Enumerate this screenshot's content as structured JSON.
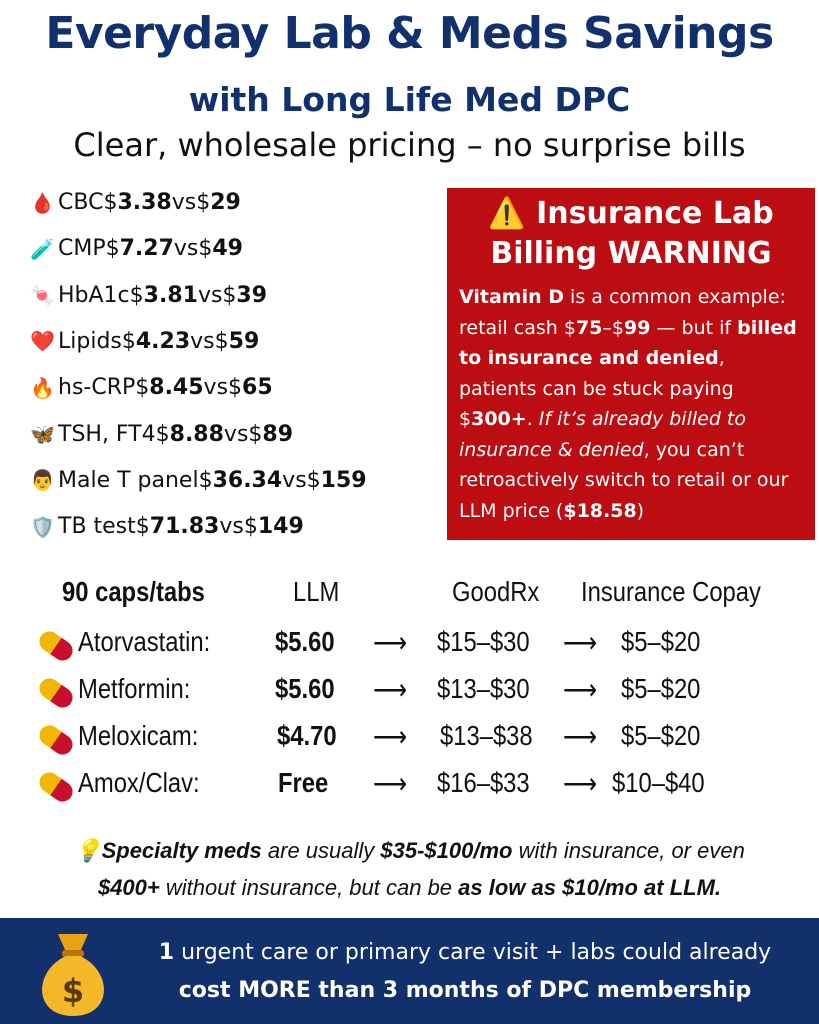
{
  "title": {
    "line1": "Everyday Lab & Meds Savings",
    "line2": "with Long Life Med DPC",
    "line3": "Clear, wholesale pricing – no surprise bills"
  },
  "labs": {
    "currency": "$",
    "vs_label": "vs",
    "items": [
      {
        "icon": "blood-drop",
        "emoji": "🩸",
        "name": "CBC",
        "llm": "3.38",
        "retail": "29"
      },
      {
        "icon": "test-tube",
        "emoji": "🧪",
        "name": "CMP",
        "llm": "7.27",
        "retail": "49"
      },
      {
        "icon": "candy",
        "emoji": "🍬",
        "name": "HbA1c",
        "llm": "3.81",
        "retail": "39"
      },
      {
        "icon": "heart",
        "emoji": "❤️",
        "name": "Lipids",
        "llm": "4.23",
        "retail": "59"
      },
      {
        "icon": "fire",
        "emoji": "🔥",
        "name": "hs-CRP",
        "llm": "8.45",
        "retail": "65"
      },
      {
        "icon": "butterfly",
        "emoji": "🦋",
        "name": "TSH, FT4",
        "llm": "8.88",
        "retail": "89"
      },
      {
        "icon": "man",
        "emoji": "👨",
        "name": "Male T panel",
        "llm": "36.34",
        "retail": "159"
      },
      {
        "icon": "shield",
        "emoji": "🛡️",
        "name": "TB test ",
        "llm": "71.83",
        "retail": "149"
      }
    ]
  },
  "warning": {
    "icon": "⚠️",
    "title1": "Insurance Lab",
    "title2": "Billing WARNING",
    "body": [
      {
        "t": "Vitamin D",
        "s": "b"
      },
      {
        "t": " is a common example: retail cash $",
        "s": ""
      },
      {
        "t": "75",
        "s": "b"
      },
      {
        "t": "–$",
        "s": ""
      },
      {
        "t": "99",
        "s": "b"
      },
      {
        "t": "  — but if ",
        "s": ""
      },
      {
        "t": "billed to insurance and denied",
        "s": "b"
      },
      {
        "t": ", patients can be stuck paying $",
        "s": ""
      },
      {
        "t": "300+",
        "s": "b"
      },
      {
        "t": ".  ",
        "s": ""
      },
      {
        "t": "If it’s already billed to insurance & denied",
        "s": "i"
      },
      {
        "t": ", you can’t retroactively switch to retail or our LLM price (",
        "s": ""
      },
      {
        "t": "$18.58",
        "s": "b"
      },
      {
        "t": ")",
        "s": ""
      }
    ]
  },
  "meds": {
    "headers": [
      "90 caps/tabs",
      "LLM",
      "GoodRx",
      "Insurance Copay"
    ],
    "arrow": "⟶",
    "rows": [
      {
        "name": "Atorvastatin:",
        "llm": "$5.60",
        "goodrx": "$15–$30",
        "copay": "$5–$20"
      },
      {
        "name": "Metformin:",
        "llm": "$5.60",
        "goodrx": "$13–$30",
        "copay": "$5–$20"
      },
      {
        "name": "Meloxicam:",
        "llm": "$4.70",
        "goodrx": "$13–$38",
        "copay": "$5–$20"
      },
      {
        "name": "Amox/Clav:",
        "llm": "Free",
        "goodrx": "$16–$33",
        "copay": "$10–$40"
      }
    ]
  },
  "note": {
    "icon": "💡",
    "segments": [
      {
        "t": "Specialty meds",
        "s": "b"
      },
      {
        "t": " are usually ",
        "s": ""
      },
      {
        "t": "$35-$100/mo",
        "s": "b"
      },
      {
        "t": " with insurance, or even ",
        "s": ""
      },
      {
        "t": "$400+",
        "s": "b"
      },
      {
        "t": " without insurance, but can be ",
        "s": ""
      },
      {
        "t": "as low as $10/mo at LLM.",
        "s": "b"
      }
    ]
  },
  "footer": {
    "bag_symbol": "$",
    "line1_bold": "1",
    "line1": " urgent care or primary care visit + labs could already",
    "line2": "cost MORE than 3 months of DPC membership"
  },
  "colors": {
    "navy": "#10306e",
    "red": "#bb0d12"
  }
}
